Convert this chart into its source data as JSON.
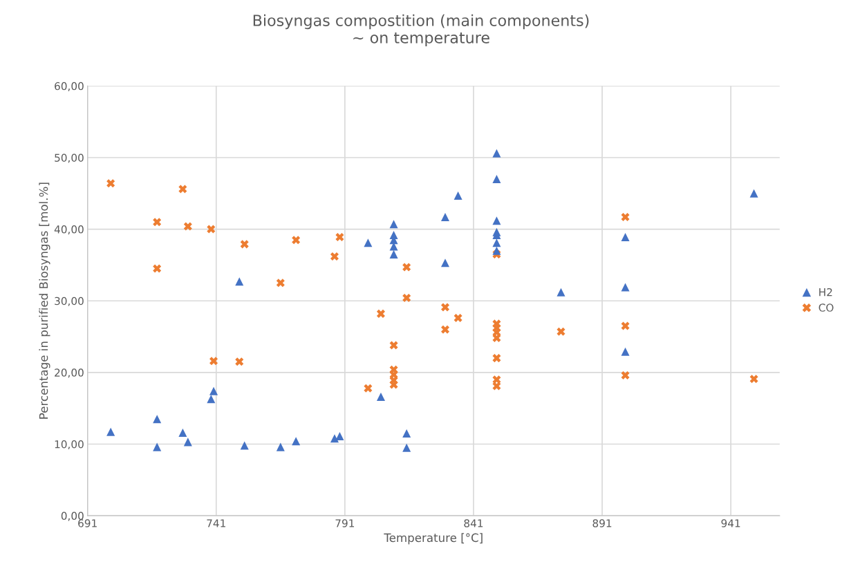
{
  "chart_data": {
    "type": "scatter",
    "title": "Biosyngas compostition (main components)\n~ on temperature",
    "xlabel": "Temperature [°C]",
    "ylabel": "Percentage in purified Biosyngas [mol.%]",
    "xlim": [
      691,
      960
    ],
    "xticks": [
      691,
      741,
      791,
      841,
      891,
      941
    ],
    "ylim": [
      0,
      60
    ],
    "yticks": [
      {
        "value": 0,
        "label": "0,00"
      },
      {
        "value": 10,
        "label": "10,00"
      },
      {
        "value": 20,
        "label": "20,00"
      },
      {
        "value": 30,
        "label": "30,00"
      },
      {
        "value": 40,
        "label": "40,00"
      },
      {
        "value": 50,
        "label": "50,00"
      },
      {
        "value": 60,
        "label": "60,00"
      }
    ],
    "grid": true,
    "legend": "right",
    "series": [
      {
        "name": "H2",
        "color": "#4472c4",
        "marker": "triangle",
        "x": [
          700,
          718,
          718,
          728,
          730,
          739,
          740,
          750,
          752,
          766,
          772,
          787,
          789,
          800,
          805,
          810,
          810,
          810,
          810,
          810,
          815,
          815,
          830,
          830,
          835,
          850,
          850,
          850,
          850,
          850,
          850,
          850,
          875,
          900,
          900,
          900,
          950
        ],
        "values": [
          11.7,
          13.5,
          9.6,
          11.6,
          10.3,
          16.3,
          17.4,
          32.7,
          9.8,
          9.6,
          10.4,
          10.8,
          11.1,
          38.1,
          16.6,
          40.7,
          39.2,
          38.5,
          37.6,
          36.5,
          11.5,
          9.5,
          41.7,
          35.3,
          44.7,
          50.6,
          47.0,
          41.2,
          39.6,
          39.2,
          38.1,
          37.0,
          31.2,
          38.9,
          31.9,
          22.9,
          45.0
        ]
      },
      {
        "name": "CO",
        "color": "#ed7d31",
        "marker": "cross",
        "x": [
          700,
          718,
          718,
          728,
          730,
          739,
          740,
          750,
          752,
          766,
          772,
          787,
          789,
          800,
          805,
          810,
          810,
          810,
          810,
          810,
          815,
          815,
          830,
          830,
          835,
          850,
          850,
          850,
          850,
          850,
          850,
          850,
          850,
          875,
          900,
          900,
          900,
          950
        ],
        "values": [
          46.4,
          41.0,
          34.5,
          45.6,
          40.4,
          40.0,
          21.6,
          21.5,
          37.9,
          32.5,
          38.5,
          36.2,
          38.9,
          17.8,
          28.2,
          23.8,
          20.4,
          19.7,
          18.9,
          18.3,
          34.7,
          30.4,
          29.1,
          26.0,
          27.6,
          36.5,
          26.8,
          26.2,
          25.6,
          24.8,
          22.0,
          19.0,
          18.1,
          25.7,
          41.7,
          26.5,
          19.6,
          19.1
        ]
      }
    ]
  }
}
